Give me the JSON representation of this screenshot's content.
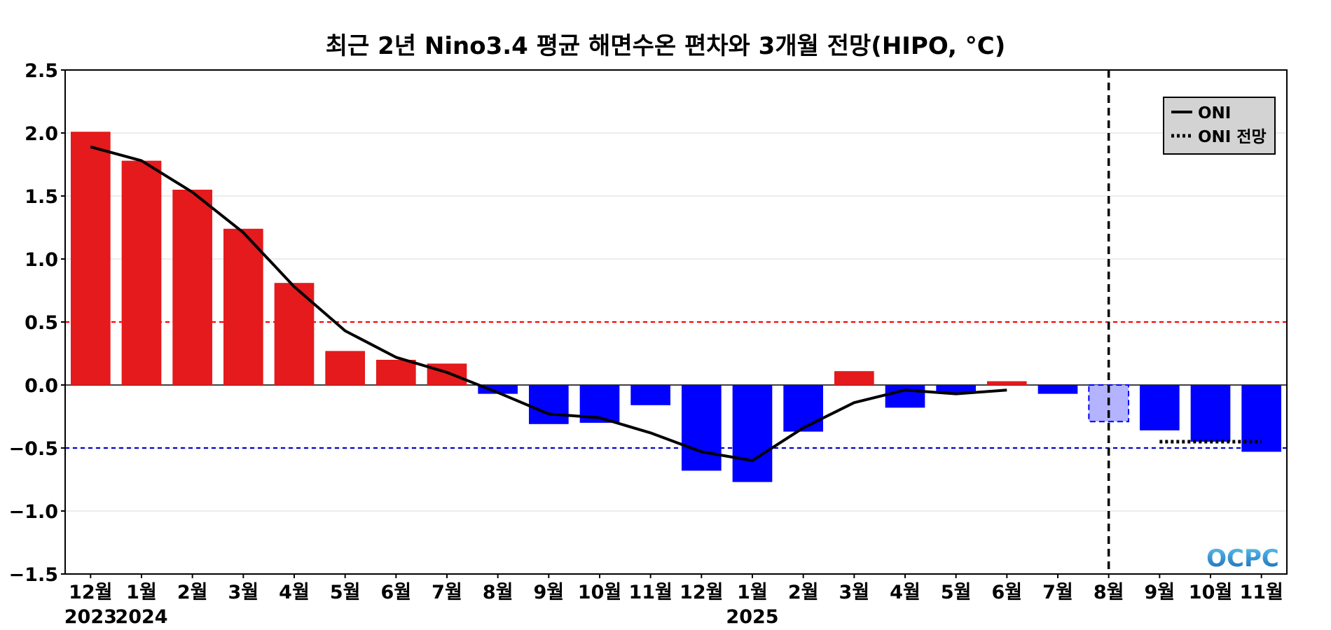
{
  "chart_data": {
    "type": "bar",
    "title": "최근 2년 Nino3.4 평균 해면수온 편차와 3개월 전망(HIPO, °C)",
    "xlabel": "",
    "ylabel": "",
    "ylim": [
      -1.5,
      2.5
    ],
    "yticks": [
      -1.5,
      -1.0,
      -0.5,
      0.0,
      0.5,
      1.0,
      1.5,
      2.0,
      2.5
    ],
    "ytick_labels": [
      "−1.5",
      "−1.0",
      "−0.5",
      "0.0",
      "0.5",
      "1.0",
      "1.5",
      "2.0",
      "2.5"
    ],
    "categories": [
      "12월",
      "1월",
      "2월",
      "3월",
      "4월",
      "5월",
      "6월",
      "7월",
      "8월",
      "9월",
      "10월",
      "11월",
      "12월",
      "1월",
      "2월",
      "3월",
      "4월",
      "5월",
      "6월",
      "7월",
      "8월",
      "9월",
      "10월",
      "11월"
    ],
    "year_labels": [
      {
        "index": 0,
        "label": "2023"
      },
      {
        "index": 1,
        "label": "2024"
      },
      {
        "index": 13,
        "label": "2025"
      }
    ],
    "series": [
      {
        "values": [
          2.01,
          1.78,
          1.55,
          1.24,
          0.81,
          0.27,
          0.2,
          0.17,
          -0.07,
          -0.31,
          -0.3,
          -0.16,
          -0.68,
          -0.77,
          -0.37,
          0.11,
          -0.18,
          -0.06,
          0.03,
          -0.07,
          -0.29,
          -0.36,
          -0.45,
          -0.53
        ],
        "forecast_index": 20
      },
      {
        "name": "ONI",
        "type": "line",
        "values": [
          1.89,
          1.78,
          1.53,
          1.21,
          0.78,
          0.43,
          0.22,
          0.1,
          -0.06,
          -0.23,
          -0.26,
          -0.38,
          -0.53,
          -0.6,
          -0.34,
          -0.14,
          -0.04,
          -0.07,
          -0.04,
          null,
          null,
          null,
          null,
          null
        ]
      },
      {
        "name": "ONI 전망",
        "type": "line",
        "style": "dotted",
        "values": [
          null,
          null,
          null,
          null,
          null,
          null,
          null,
          null,
          null,
          null,
          null,
          null,
          null,
          null,
          null,
          null,
          null,
          null,
          null,
          null,
          null,
          -0.45,
          -0.45,
          -0.45
        ]
      }
    ],
    "reference_lines": [
      {
        "value": 0.5,
        "color": "#ff0000",
        "style": "dashed"
      },
      {
        "value": -0.5,
        "color": "#0000cc",
        "style": "dashed"
      },
      {
        "value": 0.0,
        "color": "#000000",
        "style": "solid"
      }
    ],
    "forecast_start_index": 20,
    "legend": {
      "placement": "top-right",
      "entries": [
        {
          "label": "ONI",
          "style": "solid"
        },
        {
          "label": "ONI 전망",
          "style": "dotted"
        }
      ]
    },
    "grid": true,
    "colors": {
      "positive": "#e41a1c",
      "negative": "#0000ff",
      "forecast_bar": "#b3b3ff",
      "forecast_bar_border": "#0000ff",
      "line": "#000000",
      "legend_bg": "#d3d3d3"
    }
  },
  "logo": {
    "text": "OCPC"
  }
}
